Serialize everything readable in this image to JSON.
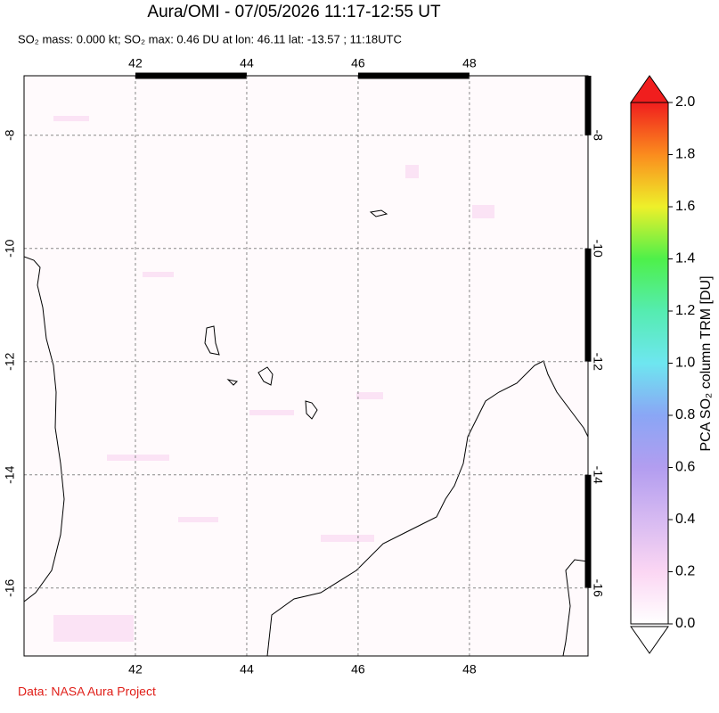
{
  "header": {
    "title": "Aura/OMI - 07/05/2026 11:17-12:55 UT",
    "subtitle": "SO₂ mass: 0.000 kt; SO₂ max: 0.46 DU at lon: 46.11 lat: -13.57 ; 11:18UTC"
  },
  "map": {
    "lon_range": [
      40,
      50.13
    ],
    "lat_range": [
      -17.2,
      -6.95
    ],
    "lon_ticks": [
      42,
      44,
      46,
      48
    ],
    "lat_ticks": [
      -8,
      -10,
      -12,
      -14,
      -16
    ]
  },
  "colorbar": {
    "label": "PCA SO₂ column TRM [DU]",
    "ticks": [
      {
        "value": 0,
        "label": "0.0"
      },
      {
        "value": 0.2,
        "label": "0.2"
      },
      {
        "value": 0.4,
        "label": "0.4"
      },
      {
        "value": 0.6,
        "label": "0.6"
      },
      {
        "value": 0.8,
        "label": "0.8"
      },
      {
        "value": 1,
        "label": "1.0"
      },
      {
        "value": 1.2,
        "label": "1.2"
      },
      {
        "value": 1.4,
        "label": "1.4"
      },
      {
        "value": 1.6,
        "label": "1.6"
      },
      {
        "value": 1.8,
        "label": "1.8"
      },
      {
        "value": 2,
        "label": "2.0"
      }
    ]
  },
  "footer": {
    "credit": "Data: NASA Aura Project"
  }
}
